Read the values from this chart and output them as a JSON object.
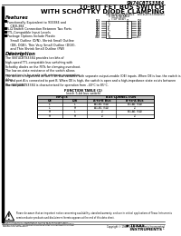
{
  "bg_color": "#ffffff",
  "title_lines": [
    "SN74CBTS3384",
    "10-BIT FET BUS SWITCH",
    "WITH SCHOTTKY DIODE CLAMPING"
  ],
  "part_number_line": "SN74CBTS3384PWLE   SN74CBTS3384DGG",
  "features_title": "Features",
  "feat_items": [
    "Functionally Equivalent to 933384 and\n   CB3L384",
    "5-Ω Switch Connection Between Two Ports",
    "TTL-Compatible Input Levels",
    "Package Options Include Plastic\n   Small Outline (D/N), Shrink Small Outline\n   (DB, DGB), Thin Very Small Outline (DGV),\n   and Thin Shrink Small Outline (PW)\n   Packages"
  ],
  "desc_title": "Description",
  "desc_para1": "The SN74CBTS3384 provides ten bits of\nhigh-speed TTL-compatible bus switching with\nSchottky diodes on the FETs for clamping overshoot.\nThe low on-state resistance of the switch allows\nconnections to be made with minimum propagation\ndelay.",
  "desc_para2": "The device is organized as two 5-bit bus switches with separate output-enable (OE) inputs. When OE is low, the switch is on and port A is connected to port B. When OE is high, the switch is open and a high-impedance state exists between the two ports.",
  "desc_para3": "The SN74CBTS3384 is characterized for operation from –40°C to 85°C.",
  "fn_table_title": "FUNCTION TABLE (1)",
  "fn_table_subtitle": "(each 5-bit bus switch)",
  "fn_col_headers": [
    "INPUTS",
    "BUS CONNECTION"
  ],
  "fn_sub_headers": [
    "OE",
    "DIR",
    "A-to-B Bus",
    "B-to-A Bus"
  ],
  "fn_table_rows": [
    [
      "L",
      "L",
      "A1-B1 (5Ω)",
      "B1-A1 (5Ω)"
    ],
    [
      "L",
      "H",
      "A1-B1 (5Ω)",
      "Z"
    ],
    [
      "H",
      "L",
      "Z",
      "B1-A1 (5Ω)"
    ],
    [
      "H",
      "H",
      "Z",
      "Z"
    ]
  ],
  "pin_pkg_label": "D OR N PACKAGE",
  "pin_pkg_label2": "(TOP VIEW)",
  "pin_data": [
    [
      "1OE",
      "1",
      "20",
      "2OE"
    ],
    [
      "1A1",
      "2",
      "19",
      "2A1"
    ],
    [
      "1A2",
      "3",
      "18",
      "2A2"
    ],
    [
      "1A3",
      "4",
      "17",
      "2A3"
    ],
    [
      "1A4",
      "5",
      "16",
      "2A4"
    ],
    [
      "1A5",
      "6",
      "15",
      "2A5"
    ],
    [
      "1B5",
      "7",
      "14",
      "2B5"
    ],
    [
      "1B4",
      "8",
      "13",
      "2B4"
    ],
    [
      "1B3",
      "9",
      "12",
      "2B3"
    ],
    [
      "GND",
      "10",
      "11",
      "VCC"
    ]
  ],
  "warning_text": "Please be aware that an important notice concerning availability, standard warranty, and use in critical applications of Texas Instruments semiconductor products and disclaimers thereto appears at the end of this data sheet.",
  "footer_copy": "Copyright © 1998, Texas Instruments Incorporated",
  "footer_page": "1",
  "prod_data_text": "PRODUCTION DATA information is current as of publication date.\nProducts conform to specifications per the terms of Texas Instruments\nstandard warranty. Production processing does not necessarily include\ntesting of all parameters."
}
